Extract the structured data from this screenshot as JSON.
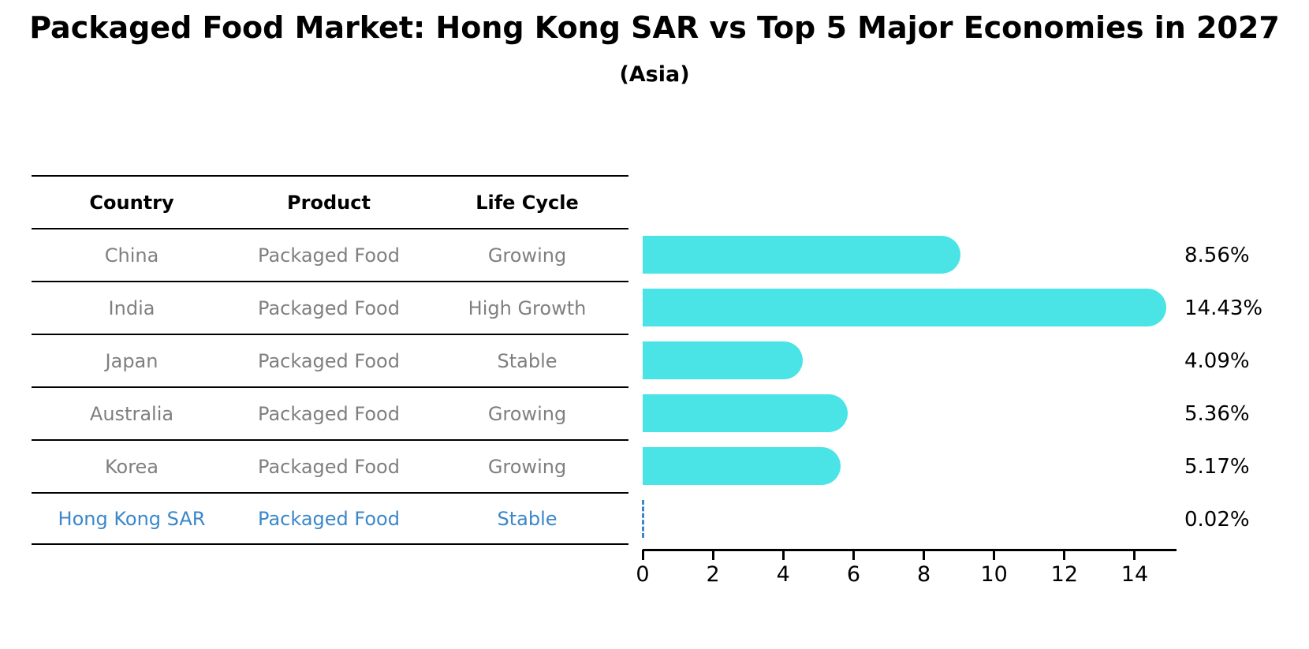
{
  "title": "Packaged Food Market: Hong Kong SAR vs Top 5 Major Economies in 2027",
  "subtitle": "(Asia)",
  "table": {
    "headers": [
      "Country",
      "Product",
      "Life Cycle"
    ],
    "rows": [
      {
        "country": "China",
        "product": "Packaged Food",
        "life_cycle": "Growing",
        "highlight": false
      },
      {
        "country": "India",
        "product": "Packaged Food",
        "life_cycle": "High Growth",
        "highlight": false
      },
      {
        "country": "Japan",
        "product": "Packaged Food",
        "life_cycle": "Stable",
        "highlight": false
      },
      {
        "country": "Australia",
        "product": "Packaged Food",
        "life_cycle": "Growing",
        "highlight": false
      },
      {
        "country": "Korea",
        "product": "Packaged Food",
        "life_cycle": "Growing",
        "highlight": false
      },
      {
        "country": "Hong Kong SAR",
        "product": "Packaged Food",
        "life_cycle": "Stable",
        "highlight": true
      }
    ]
  },
  "chart_data": {
    "type": "bar",
    "orientation": "horizontal",
    "title": "Packaged Food Market: Hong Kong SAR vs Top 5 Major Economies in 2027",
    "subtitle": "(Asia)",
    "categories": [
      "China",
      "India",
      "Japan",
      "Australia",
      "Korea",
      "Hong Kong SAR"
    ],
    "values": [
      8.56,
      14.43,
      4.09,
      5.36,
      5.17,
      0.02
    ],
    "value_labels": [
      "8.56%",
      "14.43%",
      "4.09%",
      "5.36%",
      "5.17%",
      "0.02%"
    ],
    "xticks": [
      0,
      2,
      4,
      6,
      8,
      10,
      12,
      14
    ],
    "xlim": [
      0,
      15.2
    ],
    "grid": false,
    "legend": false,
    "bar_color": "#4BE4E6",
    "highlight_bar_style": "dashed-outline",
    "highlight_color": "#3A87C9"
  },
  "colors": {
    "title_text": "#000000",
    "table_text_gray": "#7F7F7F",
    "table_header_text": "#000000",
    "highlight_blue": "#3A87C9",
    "bar_cyan": "#4BE4E6",
    "axis_black": "#000000"
  }
}
